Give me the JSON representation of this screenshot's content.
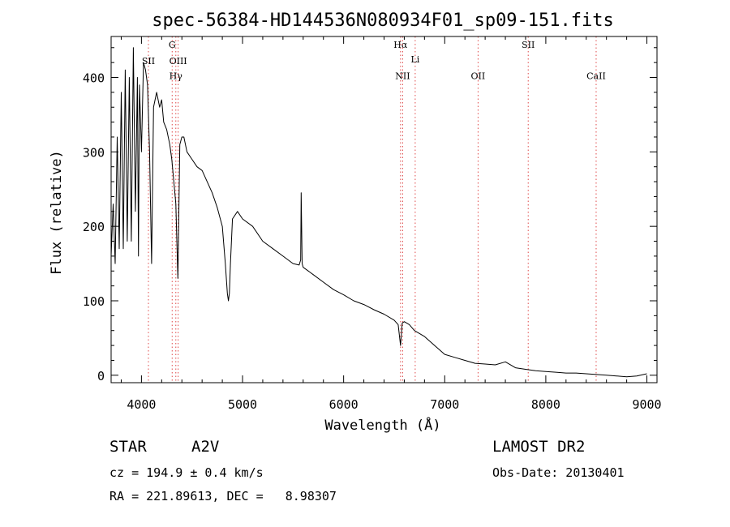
{
  "chart_data": {
    "type": "line",
    "title": "spec-56384-HD144536N080934F01_sp09-151.fits",
    "xlabel": "Wavelength (Å)",
    "ylabel": "Flux (relative)",
    "xlim": [
      3700,
      9100
    ],
    "ylim": [
      -10,
      455
    ],
    "xticks": [
      4000,
      5000,
      6000,
      7000,
      8000,
      9000
    ],
    "yticks": [
      0,
      100,
      200,
      300,
      400
    ],
    "xtick_labels": [
      "4000",
      "5000",
      "6000",
      "7000",
      "8000",
      "9000"
    ],
    "ytick_labels": [
      "0",
      "100",
      "200",
      "300",
      "400"
    ],
    "grid": false,
    "spectrum": {
      "x": [
        3700,
        3720,
        3740,
        3760,
        3780,
        3800,
        3820,
        3840,
        3860,
        3880,
        3900,
        3920,
        3940,
        3960,
        3970,
        3980,
        4000,
        4020,
        4040,
        4060,
        4080,
        4100,
        4120,
        4150,
        4180,
        4200,
        4220,
        4250,
        4280,
        4300,
        4320,
        4340,
        4360,
        4380,
        4400,
        4420,
        4450,
        4500,
        4550,
        4600,
        4650,
        4700,
        4750,
        4800,
        4830,
        4850,
        4860,
        4870,
        4880,
        4900,
        4950,
        5000,
        5100,
        5200,
        5300,
        5400,
        5500,
        5560,
        5575,
        5580,
        5590,
        5600,
        5700,
        5800,
        5900,
        6000,
        6100,
        6200,
        6300,
        6400,
        6500,
        6540,
        6563,
        6580,
        6600,
        6650,
        6700,
        6800,
        6900,
        7000,
        7100,
        7200,
        7300,
        7400,
        7500,
        7600,
        7700,
        7800,
        7900,
        8000,
        8100,
        8200,
        8300,
        8400,
        8500,
        8600,
        8700,
        8800,
        8900,
        9000
      ],
      "y": [
        160,
        230,
        150,
        320,
        170,
        380,
        170,
        410,
        180,
        400,
        180,
        440,
        220,
        400,
        160,
        390,
        300,
        420,
        410,
        390,
        300,
        150,
        360,
        380,
        360,
        370,
        340,
        330,
        310,
        290,
        260,
        230,
        130,
        310,
        320,
        320,
        300,
        290,
        280,
        275,
        260,
        245,
        225,
        200,
        150,
        110,
        100,
        110,
        150,
        210,
        220,
        210,
        200,
        180,
        170,
        160,
        150,
        148,
        155,
        245,
        150,
        145,
        135,
        125,
        115,
        108,
        100,
        95,
        88,
        82,
        74,
        68,
        40,
        70,
        72,
        68,
        60,
        52,
        40,
        28,
        24,
        20,
        16,
        15,
        14,
        18,
        10,
        8,
        6,
        5,
        4,
        3,
        3,
        2,
        1,
        0,
        -1,
        -2,
        -1,
        2
      ]
    },
    "line_markers": [
      {
        "wavelength": 4069,
        "label": "SII",
        "label_y": 418
      },
      {
        "wavelength": 4304,
        "label": "G",
        "label_y": 440
      },
      {
        "wavelength": 4340,
        "label": "Hγ",
        "label_y": 398
      },
      {
        "wavelength": 4363,
        "label": "OIII",
        "label_y": 418
      },
      {
        "wavelength": 6563,
        "label": "Hα",
        "label_y": 440
      },
      {
        "wavelength": 6584,
        "label": "NII",
        "label_y": 398
      },
      {
        "wavelength": 6708,
        "label": "Li",
        "label_y": 420
      },
      {
        "wavelength": 7330,
        "label": "OII",
        "label_y": 398
      },
      {
        "wavelength": 7826,
        "label": "SII",
        "label_y": 440
      },
      {
        "wavelength": 8498,
        "label": "CaII",
        "label_y": 398
      }
    ]
  },
  "info": {
    "class_label": "STAR",
    "subclass": "A2V",
    "survey": "LAMOST DR2",
    "cz": "cz = 194.9 ± 0.4 km/s",
    "obs_date": "Obs-Date: 20130401",
    "coords": "RA = 221.89613, DEC =   8.98307"
  },
  "colors": {
    "line": "#000000",
    "marker": "#e04a4a",
    "background": "#ffffff"
  }
}
